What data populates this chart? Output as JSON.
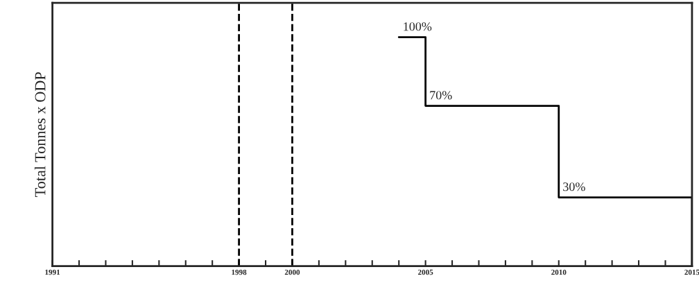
{
  "chart_data": {
    "type": "step",
    "ylabel": "Total Tonnes x ODP",
    "x": [
      2004,
      2005,
      2010,
      2015
    ],
    "series": [
      {
        "color": "#000000",
        "values": [
          100,
          70,
          30,
          0
        ],
        "value_labels": [
          "100%",
          "70%",
          "30%",
          null
        ]
      }
    ],
    "xlim": [
      1991,
      2015
    ],
    "xticks": [
      1991,
      {
        "value": 1992,
        "label": null
      },
      {
        "value": 1993,
        "label": null
      },
      {
        "value": 1994,
        "label": null
      },
      {
        "value": 1995,
        "label": null
      },
      {
        "value": 1996,
        "label": null
      },
      {
        "value": 1997,
        "label": null
      },
      1998,
      {
        "value": 1999,
        "label": null
      },
      2000,
      {
        "value": 2001,
        "label": null
      },
      {
        "value": 2002,
        "label": null
      },
      {
        "value": 2003,
        "label": null
      },
      {
        "value": 2004,
        "label": null
      },
      2005,
      {
        "value": 2006,
        "label": null
      },
      {
        "value": 2007,
        "label": null
      },
      {
        "value": 2008,
        "label": null
      },
      {
        "value": 2009,
        "label": null
      },
      2010,
      {
        "value": 2011,
        "label": null
      },
      {
        "value": 2012,
        "label": null
      },
      {
        "value": 2013,
        "label": null
      },
      {
        "value": 2014,
        "label": null
      },
      2015
    ],
    "ref_lines": [
      {
        "axis": "x",
        "value": 1998,
        "color": "#000000",
        "line_style": "dashed"
      },
      {
        "axis": "x",
        "value": 2000,
        "color": "#000000",
        "line_style": "dashed"
      }
    ],
    "tick_labels": "x",
    "grid": false,
    "legend": false,
    "marker": "none",
    "line_style": "solid"
  }
}
